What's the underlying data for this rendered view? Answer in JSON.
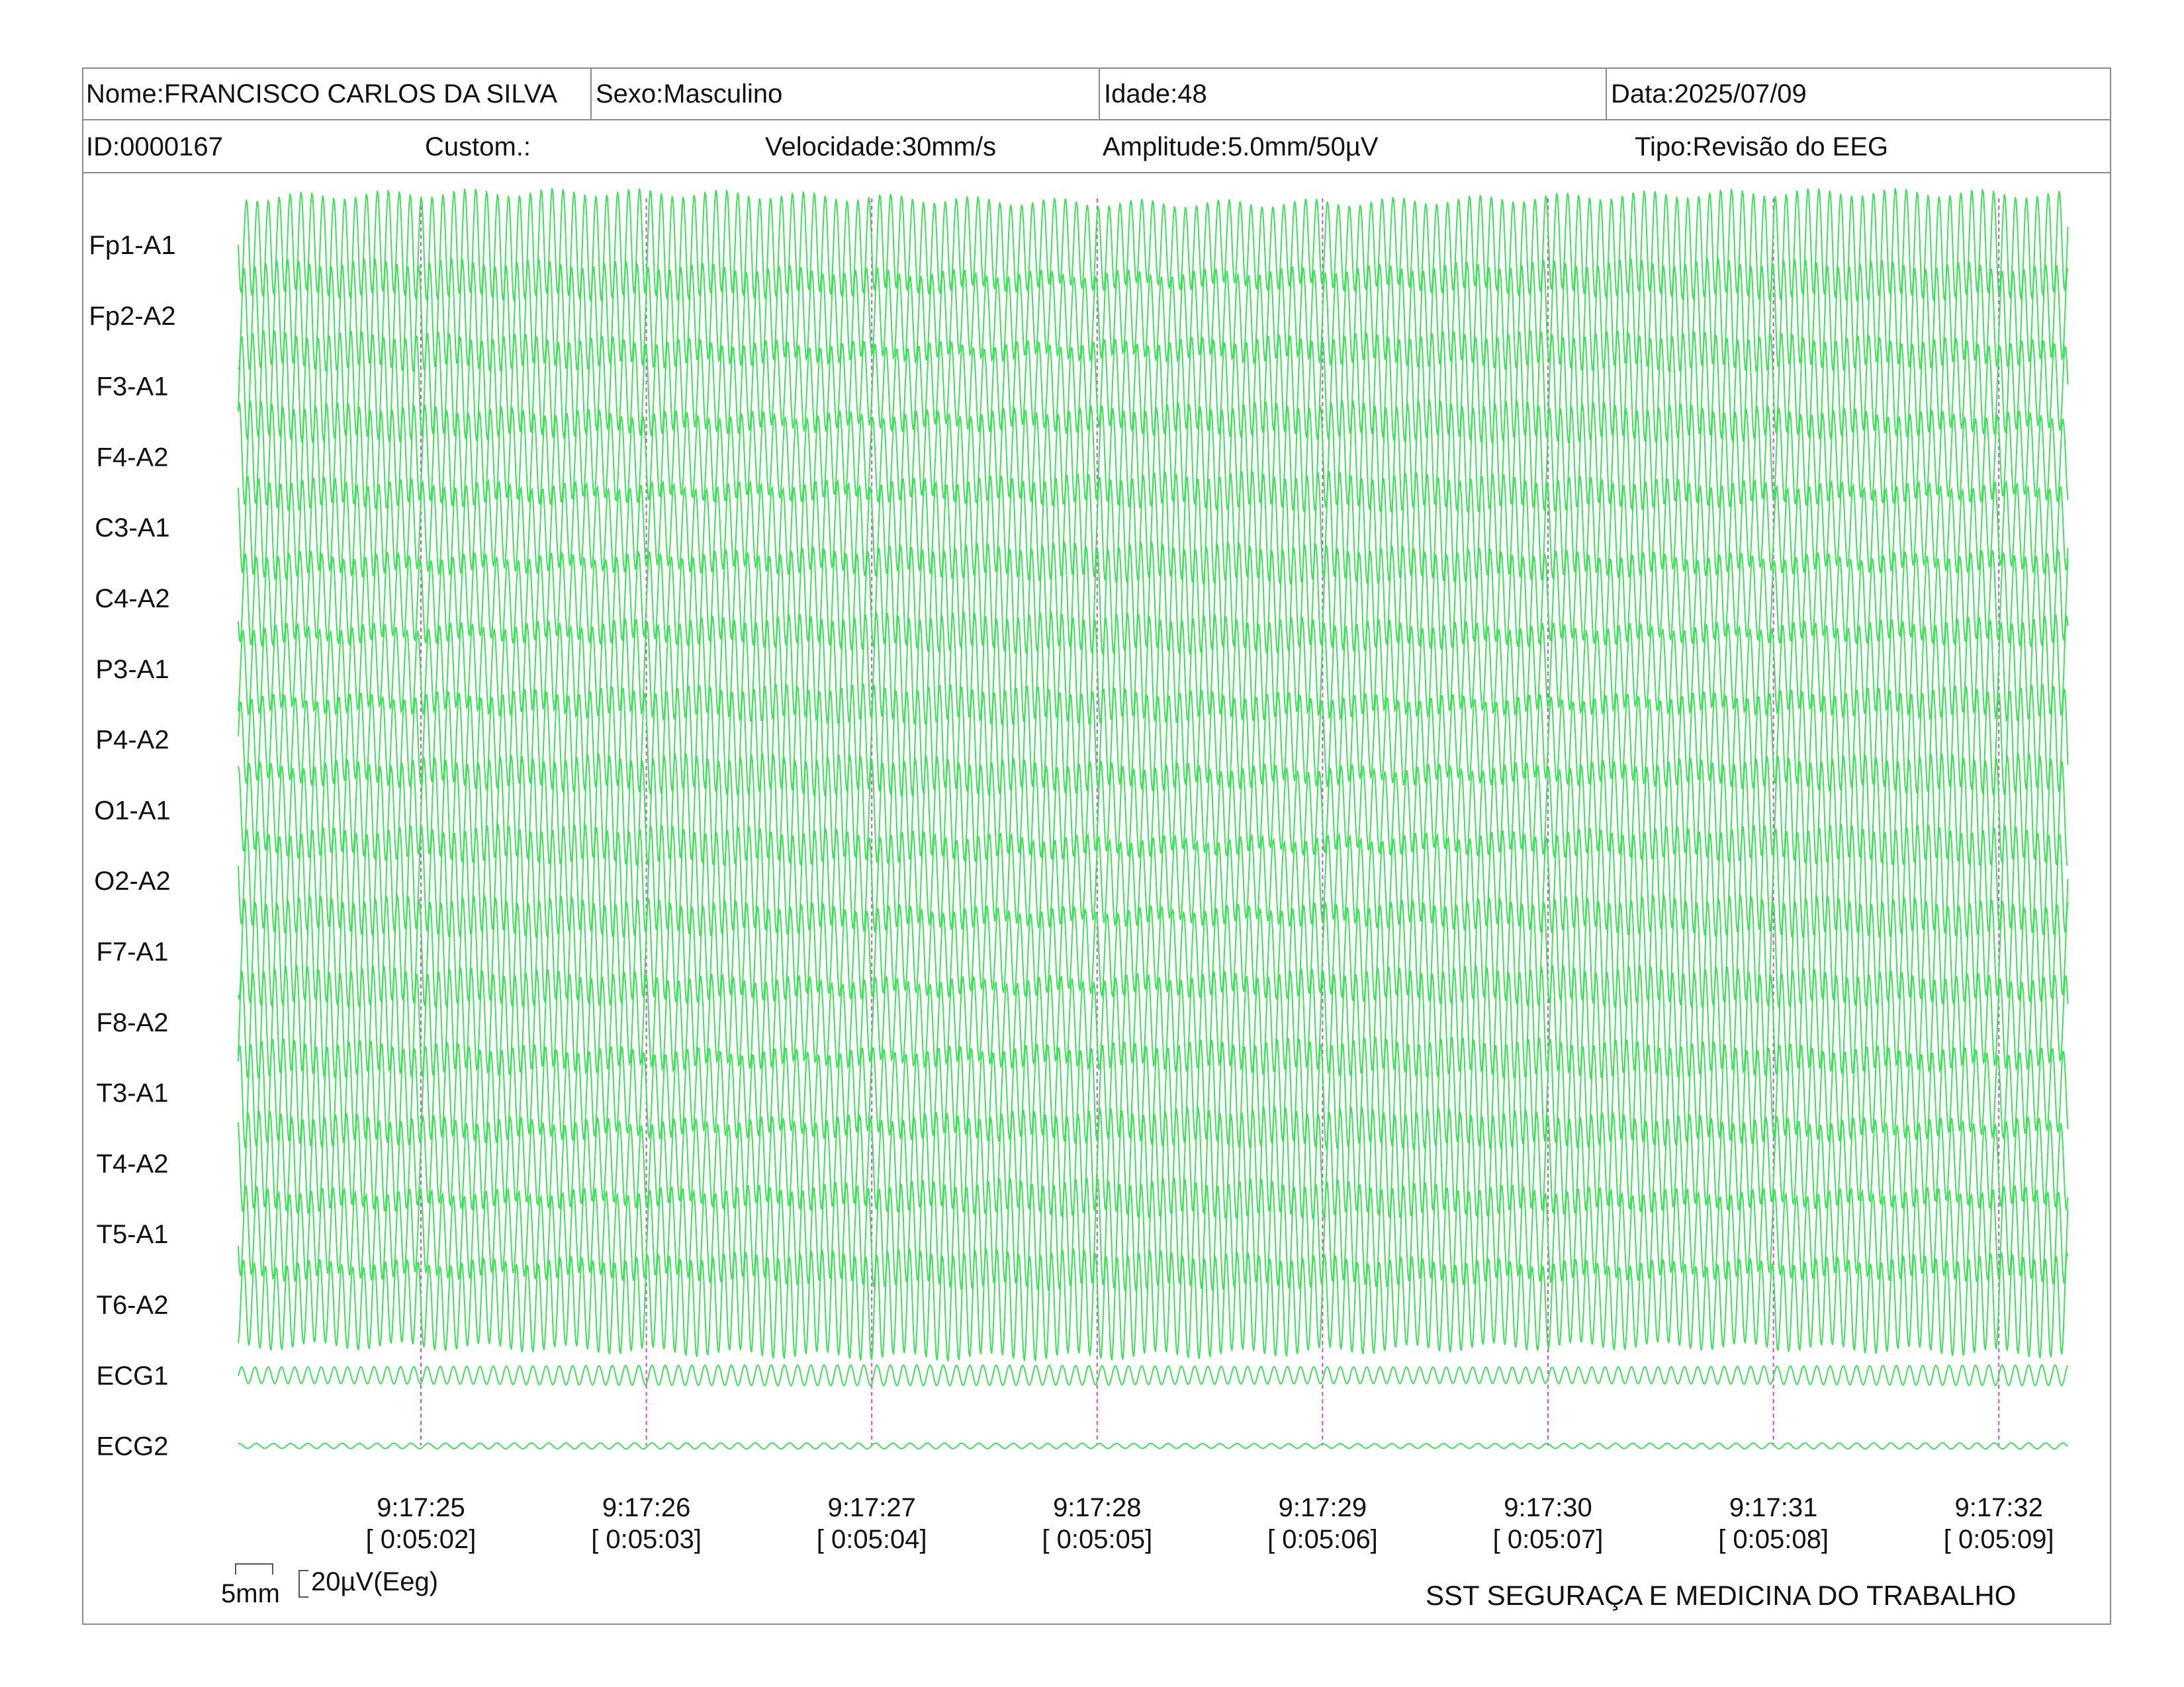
{
  "header": {
    "nome": "Nome:FRANCISCO CARLOS DA SILVA",
    "sexo": "Sexo:Masculino",
    "idade": "Idade:48",
    "data": "Data:2025/07/09",
    "id": "ID:0000167",
    "custom": "Custom.:",
    "velocidade": "Velocidade:30mm/s",
    "amplitude": "Amplitude:5.0mm/50µV",
    "tipo": "Tipo:Revisão do EEG"
  },
  "scale_bar": {
    "time_label": "5mm",
    "amp_label": "20µV(Eeg)"
  },
  "footer_text": "SST SEGURAÇA E MEDICINA DO TRABALHO",
  "colors": {
    "trace": "#3ee05a",
    "marker": "#d04ad0",
    "border": "#8a8a8a"
  },
  "chart_data": {
    "type": "line",
    "channels": [
      "Fp1-A1",
      "Fp2-A2",
      "F3-A1",
      "F4-A2",
      "C3-A1",
      "C4-A2",
      "P3-A1",
      "P4-A2",
      "O1-A1",
      "O2-A2",
      "F7-A1",
      "F8-A2",
      "T3-A1",
      "T4-A2",
      "T5-A1",
      "T6-A2",
      "ECG1",
      "ECG2"
    ],
    "time_ticks": [
      {
        "clock": "9:17:25",
        "elapsed": "[ 0:05:02]"
      },
      {
        "clock": "9:17:26",
        "elapsed": "[ 0:05:03]"
      },
      {
        "clock": "9:17:27",
        "elapsed": "[ 0:05:04]"
      },
      {
        "clock": "9:17:28",
        "elapsed": "[ 0:05:05]"
      },
      {
        "clock": "9:17:29",
        "elapsed": "[ 0:05:06]"
      },
      {
        "clock": "9:17:30",
        "elapsed": "[ 0:05:07]"
      },
      {
        "clock": "9:17:31",
        "elapsed": "[ 0:05:08]"
      },
      {
        "clock": "9:17:32",
        "elapsed": "[ 0:05:09]"
      }
    ],
    "sweep_speed": "30mm/s",
    "sensitivity": "5.0mm/50µV"
  }
}
